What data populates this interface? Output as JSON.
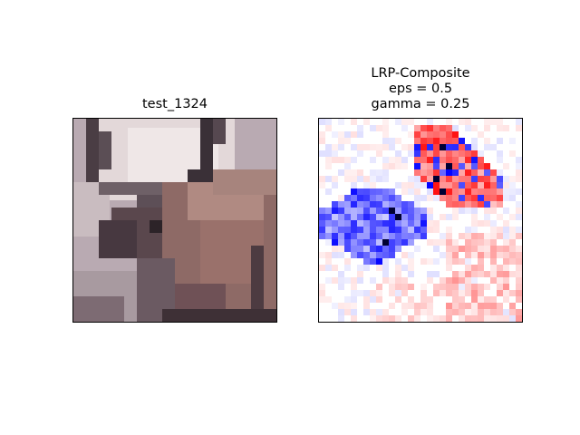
{
  "left_panel": {
    "title": "test_1324",
    "image_description_colors": {
      "background": "#b9aab2",
      "snow": "#e9e1e1",
      "antler": "#3a3037",
      "body": "#8e6a66",
      "body_light": "#b08a82",
      "shadow": "#4d3b41"
    }
  },
  "right_panel": {
    "title_lines": [
      "LRP-Composite",
      "eps = 0.5",
      "gamma = 0.25"
    ],
    "colors": {
      "positive": "#ff0000",
      "negative": "#0000ff",
      "neutral": "#ffffff"
    }
  }
}
